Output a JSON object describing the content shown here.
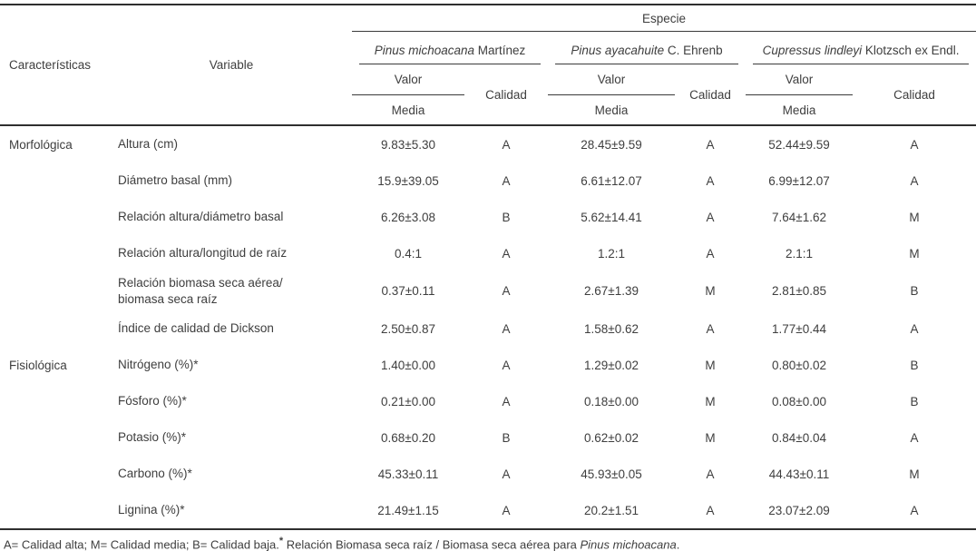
{
  "table": {
    "header": {
      "caracteristicas": "Características",
      "variable": "Variable",
      "especie": "Especie",
      "species": [
        {
          "italic": "Pinus michoacana",
          "author": " Martínez"
        },
        {
          "italic": "Pinus ayacahuite",
          "author": " C. Ehrenb"
        },
        {
          "italic": "Cupressus lindleyi",
          "author": " Klotzsch ex Endl."
        }
      ],
      "valor": "Valor",
      "media": "Media",
      "calidad": "Calidad"
    },
    "rows": [
      {
        "group": "Morfológica",
        "variable": "Altura (cm)",
        "cells": [
          "9.83±5.30",
          "A",
          "28.45±9.59",
          "A",
          "52.44±9.59",
          "A"
        ]
      },
      {
        "group": "",
        "variable": "Diámetro basal (mm)",
        "cells": [
          "15.9±39.05",
          "A",
          "6.61±12.07",
          "A",
          "6.99±12.07",
          "A"
        ]
      },
      {
        "group": "",
        "variable": "Relación altura/diámetro basal",
        "cells": [
          "6.26±3.08",
          "B",
          "5.62±14.41",
          "A",
          "7.64±1.62",
          "M"
        ]
      },
      {
        "group": "",
        "variable": "Relación altura/longitud de raíz",
        "cells": [
          "0.4:1",
          "A",
          "1.2:1",
          "A",
          "2.1:1",
          "M"
        ]
      },
      {
        "group": "",
        "variable": "Relación biomasa seca aérea/\nbiomasa seca raíz",
        "cells": [
          "0.37±0.11",
          "A",
          "2.67±1.39",
          "M",
          "2.81±0.85",
          "B"
        ]
      },
      {
        "group": "",
        "variable": "Índice de calidad de Dickson",
        "cells": [
          "2.50±0.87",
          "A",
          "1.58±0.62",
          "A",
          "1.77±0.44",
          "A"
        ]
      },
      {
        "group": "Fisiológica",
        "variable": "Nitrógeno (%)*",
        "cells": [
          "1.40±0.00",
          "A",
          "1.29±0.02",
          "M",
          "0.80±0.02",
          "B"
        ]
      },
      {
        "group": "",
        "variable": "Fósforo (%)*",
        "cells": [
          "0.21±0.00",
          "A",
          "0.18±0.00",
          "M",
          "0.08±0.00",
          "B"
        ]
      },
      {
        "group": "",
        "variable": "Potasio (%)*",
        "cells": [
          "0.68±0.20",
          "B",
          "0.62±0.02",
          "M",
          "0.84±0.04",
          "A"
        ]
      },
      {
        "group": "",
        "variable": "Carbono (%)*",
        "cells": [
          "45.33±0.11",
          "A",
          "45.93±0.05",
          "A",
          "44.43±0.11",
          "M"
        ]
      },
      {
        "group": "",
        "variable": "Lignina (%)*",
        "cells": [
          "21.49±1.15",
          "A",
          "20.2±1.51",
          "A",
          "23.07±2.09",
          "A"
        ]
      }
    ],
    "footnote": {
      "legend": "A= Calidad alta; M= Calidad media; B= Calidad baja.",
      "star": "*",
      "note": " Relación Biomasa seca raíz / Biomasa seca aérea para ",
      "species_italic": "Pinus michoacana",
      "period": "."
    }
  }
}
